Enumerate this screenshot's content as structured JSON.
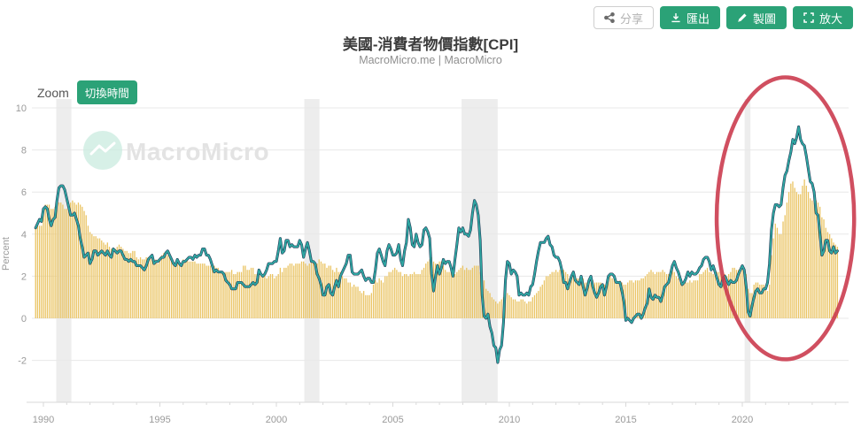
{
  "header": {
    "title": "美國-消費者物價指數[CPI]",
    "subtitle": "MacroMicro.me | MacroMicro",
    "buttons": [
      {
        "label": "分享",
        "icon": "share-icon",
        "style": "outline"
      },
      {
        "label": "匯出",
        "icon": "download-icon",
        "style": "solid"
      },
      {
        "label": "製圖",
        "icon": "pencil-icon",
        "style": "solid"
      },
      {
        "label": "放大",
        "icon": "expand-icon",
        "style": "solid"
      }
    ]
  },
  "toolbar": {
    "zoom_label": "Zoom",
    "switch_time_label": "切換時間"
  },
  "watermark": {
    "text": "MacroMicro",
    "logo": "macromicro-logo-icon"
  },
  "colors": {
    "accent_green": "#2ba277",
    "bar": "#eac463",
    "line": "#2fa7a2",
    "line_shadow": "#1e3050",
    "annotation_red": "#c9374a",
    "recession_band": "#ededed",
    "grid": "#e8e8e8",
    "axis_line": "#d9d9d9",
    "tick_text": "#9a9a9a",
    "watermark_circle": "#c9ebdf",
    "watermark_text": "#e3e3e3"
  },
  "chart_data": {
    "type": "bar+line",
    "title": "美國-消費者物價指數[CPI]",
    "ylabel": "Percent",
    "ylim": [
      -2,
      10
    ],
    "yticks": [
      10,
      8,
      6,
      4,
      2,
      0,
      -2
    ],
    "xticks": [
      1990,
      1995,
      2000,
      2005,
      2010,
      2015,
      2020
    ],
    "x_minor_tick_start": 1990,
    "x_minor_tick_end": 2024,
    "grid": true,
    "legend": "none",
    "x_start_year": 1989.6667,
    "x_step": "monthly",
    "recession_bands_years": [
      [
        1990.55,
        1991.2
      ],
      [
        2001.2,
        2001.85
      ],
      [
        2007.95,
        2009.5
      ],
      [
        2020.1,
        2020.35
      ]
    ],
    "annotation_ellipse": {
      "cx_year": 2021.85,
      "cy_value": 4.75,
      "rx_years": 2.95,
      "ry_units": 6.7
    },
    "series": [
      {
        "name": "line",
        "type": "line",
        "color": "#2fa7a2",
        "values": [
          4.3,
          4.5,
          4.7,
          4.6,
          5.2,
          5.3,
          5.2,
          4.7,
          4.4,
          4.7,
          4.8,
          5.6,
          6.2,
          6.3,
          6.3,
          6.1,
          5.7,
          5.3,
          4.9,
          4.9,
          5.0,
          4.7,
          4.4,
          3.8,
          3.4,
          2.9,
          3.0,
          3.1,
          2.6,
          2.8,
          3.2,
          3.2,
          3.0,
          3.1,
          3.2,
          3.1,
          3.0,
          3.2,
          3.0,
          2.9,
          3.3,
          3.2,
          3.1,
          3.2,
          3.2,
          3.0,
          2.8,
          2.8,
          2.7,
          2.8,
          2.7,
          2.7,
          2.5,
          2.5,
          2.5,
          2.4,
          2.3,
          2.5,
          2.8,
          2.9,
          3.0,
          2.6,
          2.7,
          2.7,
          2.8,
          2.9,
          2.9,
          3.1,
          3.2,
          3.0,
          2.8,
          2.6,
          2.5,
          2.8,
          2.6,
          2.5,
          2.7,
          2.7,
          2.8,
          2.9,
          2.9,
          2.8,
          3.0,
          2.9,
          3.0,
          3.0,
          3.3,
          3.3,
          3.0,
          3.0,
          2.8,
          2.5,
          2.2,
          2.3,
          2.2,
          2.2,
          2.2,
          2.1,
          1.8,
          1.7,
          1.6,
          1.4,
          1.4,
          1.4,
          1.7,
          1.7,
          1.7,
          1.6,
          1.5,
          1.5,
          1.5,
          1.6,
          1.7,
          1.6,
          1.7,
          2.3,
          2.1,
          2.0,
          2.1,
          2.3,
          2.6,
          2.6,
          2.6,
          2.7,
          2.7,
          3.2,
          3.8,
          3.1,
          3.2,
          3.7,
          3.7,
          3.4,
          3.5,
          3.4,
          3.4,
          3.4,
          3.7,
          3.5,
          2.9,
          3.3,
          3.6,
          3.2,
          2.7,
          2.7,
          2.6,
          2.1,
          1.9,
          1.6,
          1.1,
          1.1,
          1.5,
          1.6,
          1.2,
          1.1,
          1.5,
          1.8,
          1.5,
          2.0,
          2.2,
          2.4,
          2.6,
          3.0,
          3.0,
          2.2,
          2.1,
          2.1,
          2.1,
          2.2,
          2.3,
          2.0,
          1.8,
          1.9,
          1.9,
          1.7,
          1.7,
          2.3,
          3.1,
          3.3,
          3.0,
          2.7,
          2.5,
          3.2,
          3.5,
          3.3,
          3.0,
          3.0,
          3.1,
          3.5,
          2.8,
          2.5,
          3.2,
          3.6,
          4.7,
          4.3,
          3.5,
          3.4,
          4.0,
          3.6,
          3.4,
          3.5,
          4.2,
          4.3,
          4.1,
          3.8,
          2.1,
          1.3,
          2.0,
          2.5,
          2.1,
          2.4,
          2.8,
          2.6,
          2.7,
          2.7,
          2.4,
          2.0,
          2.8,
          3.5,
          4.3,
          4.1,
          4.3,
          4.0,
          4.0,
          3.9,
          4.2,
          5.0,
          5.6,
          5.4,
          4.9,
          3.7,
          1.1,
          0.1,
          0.0,
          0.2,
          -0.4,
          -0.7,
          -1.3,
          -1.4,
          -2.1,
          -1.5,
          -1.3,
          -0.2,
          1.8,
          2.7,
          2.6,
          2.1,
          2.3,
          2.2,
          2.0,
          1.1,
          1.2,
          1.1,
          1.1,
          1.2,
          1.1,
          1.5,
          1.6,
          2.1,
          2.7,
          3.2,
          3.6,
          3.6,
          3.6,
          3.8,
          3.9,
          3.5,
          3.4,
          3.0,
          2.9,
          2.9,
          2.7,
          2.3,
          1.7,
          1.7,
          1.4,
          1.7,
          2.0,
          2.2,
          1.8,
          1.7,
          1.6,
          2.0,
          1.5,
          1.1,
          1.4,
          1.8,
          2.0,
          1.5,
          1.2,
          1.0,
          1.2,
          1.5,
          1.6,
          1.1,
          1.5,
          2.0,
          2.1,
          2.1,
          2.0,
          1.7,
          1.7,
          1.7,
          1.3,
          0.8,
          -0.1,
          0.0,
          -0.1,
          -0.2,
          0.0,
          0.1,
          0.2,
          0.2,
          0.0,
          0.2,
          0.5,
          0.7,
          1.4,
          1.0,
          0.9,
          1.1,
          1.0,
          1.0,
          0.8,
          1.1,
          1.5,
          1.6,
          1.7,
          2.1,
          2.5,
          2.7,
          2.4,
          2.2,
          1.9,
          1.6,
          1.7,
          1.9,
          2.2,
          2.0,
          2.2,
          2.1,
          2.1,
          2.2,
          2.4,
          2.5,
          2.8,
          2.9,
          2.9,
          2.7,
          2.3,
          2.5,
          2.2,
          1.9,
          1.6,
          1.5,
          1.9,
          2.0,
          1.8,
          1.6,
          1.8,
          1.7,
          1.7,
          1.8,
          2.1,
          2.3,
          2.5,
          2.3,
          1.5,
          0.3,
          0.1,
          0.6,
          1.0,
          1.3,
          1.4,
          1.2,
          1.2,
          1.4,
          1.4,
          1.7,
          2.6,
          4.2,
          5.0,
          5.4,
          5.4,
          5.3,
          5.4,
          6.2,
          6.8,
          7.0,
          7.5,
          7.9,
          8.5,
          8.3,
          8.6,
          9.1,
          8.5,
          8.3,
          8.2,
          7.7,
          7.1,
          6.5,
          6.4,
          6.0,
          5.0,
          4.9,
          4.0,
          3.0,
          3.2,
          3.7,
          3.7,
          3.2,
          3.1,
          3.4,
          3.1,
          3.2
        ]
      },
      {
        "name": "bars",
        "type": "bar",
        "color": "#eac463",
        "values": [
          4.4,
          4.5,
          4.4,
          4.4,
          5.2,
          5.4,
          5.4,
          5.4,
          5.2,
          5.2,
          5.3,
          5.6,
          5.5,
          5.5,
          5.4,
          5.2,
          5.2,
          5.4,
          5.5,
          5.6,
          5.5,
          5.4,
          5.5,
          5.4,
          5.3,
          5.1,
          4.9,
          4.4,
          4.1,
          4.0,
          3.9,
          3.9,
          3.8,
          3.8,
          3.7,
          3.6,
          3.5,
          3.6,
          3.4,
          3.3,
          3.2,
          3.3,
          3.4,
          3.5,
          3.4,
          3.3,
          3.2,
          3.2,
          3.1,
          3.1,
          3.2,
          3.2,
          2.9,
          2.8,
          2.9,
          2.8,
          2.8,
          2.9,
          2.9,
          2.9,
          3.0,
          2.6,
          2.8,
          2.6,
          2.9,
          3.0,
          3.1,
          3.1,
          3.0,
          3.0,
          2.8,
          2.7,
          2.6,
          2.7,
          2.7,
          2.6,
          2.8,
          2.7,
          2.8,
          2.7,
          2.7,
          2.7,
          2.7,
          2.6,
          2.6,
          2.6,
          2.6,
          2.6,
          2.5,
          2.5,
          2.5,
          2.5,
          2.5,
          2.4,
          2.4,
          2.2,
          2.2,
          2.2,
          2.2,
          2.2,
          2.2,
          2.3,
          2.1,
          2.1,
          2.2,
          2.2,
          2.2,
          2.5,
          2.5,
          2.3,
          2.3,
          2.4,
          2.4,
          2.1,
          2.1,
          2.2,
          2.0,
          2.0,
          2.1,
          1.9,
          2.0,
          2.1,
          2.1,
          1.9,
          2.0,
          2.1,
          2.4,
          2.2,
          2.4,
          2.4,
          2.5,
          2.6,
          2.6,
          2.5,
          2.6,
          2.6,
          2.6,
          2.7,
          2.7,
          2.6,
          2.5,
          2.6,
          2.7,
          2.7,
          2.6,
          2.6,
          2.8,
          2.7,
          2.6,
          2.6,
          2.4,
          2.5,
          2.5,
          2.3,
          2.2,
          2.4,
          2.2,
          2.2,
          2.0,
          1.9,
          1.9,
          1.7,
          1.7,
          1.5,
          1.6,
          1.5,
          1.5,
          1.3,
          1.2,
          1.3,
          1.1,
          1.1,
          1.1,
          1.2,
          1.6,
          1.8,
          1.7,
          1.9,
          1.8,
          1.7,
          2.0,
          2.0,
          2.2,
          2.2,
          2.3,
          2.4,
          2.3,
          2.2,
          2.2,
          2.0,
          2.1,
          2.1,
          2.0,
          2.1,
          2.1,
          2.2,
          2.1,
          2.1,
          2.1,
          2.3,
          2.4,
          2.6,
          2.7,
          2.8,
          2.9,
          2.7,
          2.6,
          2.6,
          2.7,
          2.7,
          2.5,
          2.3,
          2.2,
          2.2,
          2.2,
          2.1,
          2.1,
          2.2,
          2.3,
          2.4,
          2.5,
          2.3,
          2.4,
          2.3,
          2.3,
          2.4,
          2.5,
          2.5,
          2.5,
          2.2,
          2.0,
          1.8,
          1.4,
          1.3,
          1.2,
          1.0,
          0.9,
          0.8,
          0.7,
          0.8,
          0.9,
          1.0,
          1.1,
          1.2,
          1.1,
          1.0,
          0.9,
          0.9,
          0.8,
          0.8,
          0.9,
          0.9,
          0.8,
          0.7,
          0.8,
          0.8,
          1.0,
          1.1,
          1.2,
          1.3,
          1.5,
          1.6,
          1.8,
          2.0,
          2.0,
          2.1,
          2.2,
          2.2,
          2.3,
          2.2,
          2.3,
          2.3,
          2.3,
          2.2,
          2.1,
          1.9,
          2.0,
          2.0,
          1.9,
          1.9,
          1.9,
          2.0,
          1.9,
          1.7,
          1.7,
          1.6,
          1.7,
          1.8,
          1.7,
          1.7,
          1.7,
          1.7,
          1.6,
          1.6,
          1.7,
          1.8,
          2.0,
          1.9,
          1.9,
          1.7,
          1.7,
          1.8,
          1.7,
          1.6,
          1.6,
          1.7,
          1.8,
          1.8,
          1.7,
          1.8,
          1.8,
          1.8,
          1.9,
          1.9,
          2.0,
          2.1,
          2.2,
          2.3,
          2.2,
          2.1,
          2.2,
          2.2,
          2.2,
          2.3,
          2.2,
          2.1,
          2.1,
          2.2,
          2.3,
          2.2,
          2.0,
          1.9,
          1.7,
          1.7,
          1.7,
          1.7,
          1.7,
          1.8,
          1.7,
          1.8,
          1.8,
          1.8,
          2.1,
          2.1,
          2.2,
          2.3,
          2.4,
          2.2,
          2.2,
          2.1,
          2.2,
          2.2,
          2.2,
          2.1,
          2.0,
          2.1,
          2.0,
          2.1,
          2.2,
          2.4,
          2.4,
          2.3,
          2.3,
          2.3,
          2.3,
          2.4,
          2.1,
          1.4,
          1.2,
          1.2,
          1.6,
          1.7,
          1.7,
          1.6,
          1.6,
          1.6,
          1.4,
          1.3,
          1.6,
          3.0,
          3.8,
          4.5,
          4.3,
          4.0,
          4.0,
          4.6,
          4.9,
          5.5,
          6.0,
          6.4,
          6.5,
          6.2,
          6.0,
          5.9,
          5.9,
          6.3,
          6.6,
          6.3,
          6.0,
          5.7,
          5.6,
          5.5,
          5.6,
          5.5,
          5.3,
          4.8,
          4.7,
          4.3,
          4.1,
          4.0,
          3.8,
          3.6,
          3.5,
          3.4
        ]
      }
    ]
  }
}
